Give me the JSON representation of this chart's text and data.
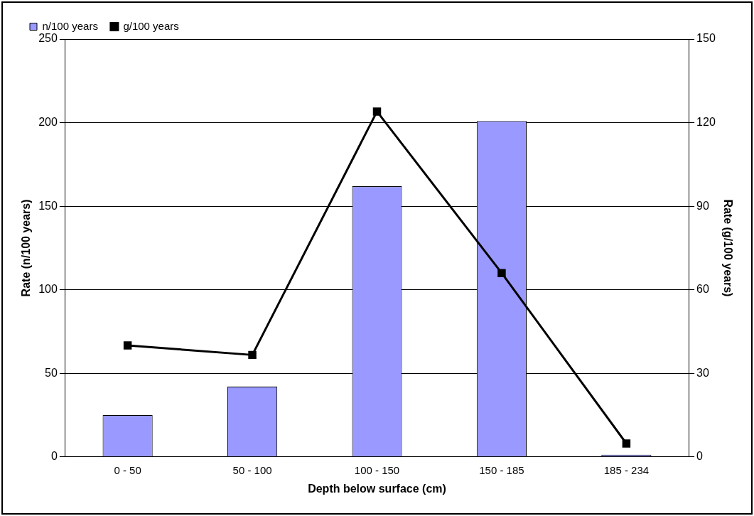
{
  "chart_data": {
    "type": "bar",
    "xlabel": "Depth below surface (cm)",
    "ylabel": "Rate (n/100 years)",
    "y2label": "Rate (g/100 years)",
    "categories": [
      "0 - 50",
      "50 - 100",
      "100 - 150",
      "150 - 185",
      "185 - 234"
    ],
    "series": [
      {
        "name": "n/100 years",
        "color": "#9999ff",
        "values": [
          25,
          42,
          162,
          201,
          1.3
        ]
      },
      {
        "name": "g/100 years",
        "type": "line",
        "axis": "y2",
        "color": "#000000",
        "marker": "square",
        "values": [
          40,
          36.6,
          124,
          66,
          4.8
        ]
      }
    ],
    "ylim": [
      0,
      250
    ],
    "yticks": [
      0,
      50,
      100,
      150,
      200,
      250
    ],
    "y2lim": [
      0,
      150
    ],
    "y2ticks": [
      0,
      30,
      60,
      90,
      120,
      150
    ],
    "grid": "y",
    "legend": "top left"
  }
}
